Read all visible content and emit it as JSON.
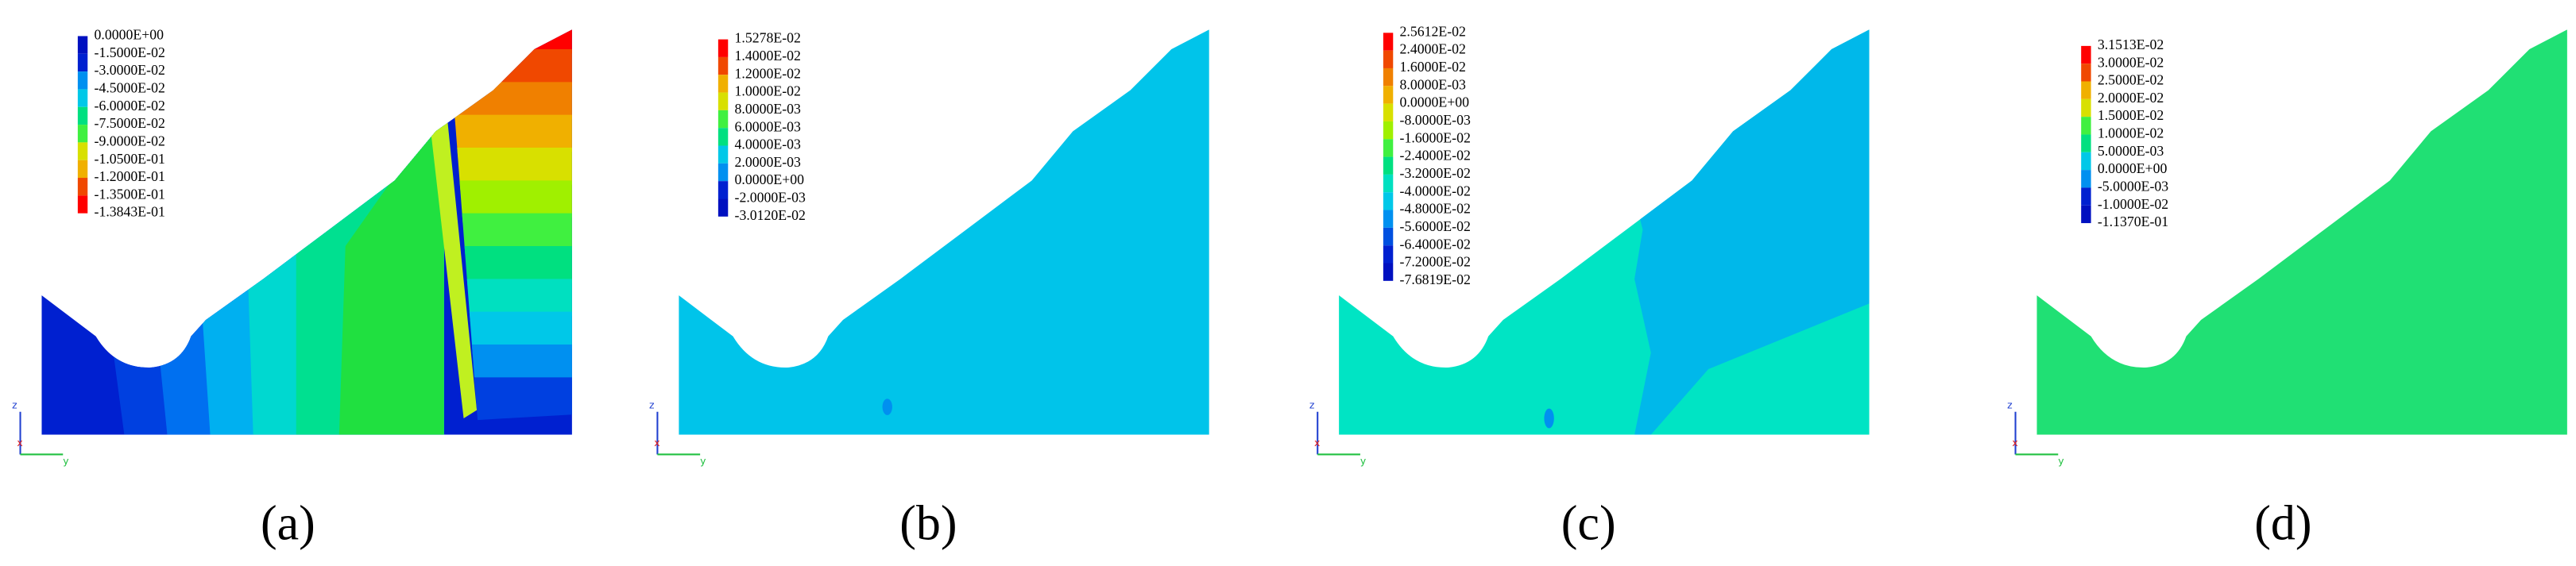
{
  "panels": [
    {
      "label": "(a)",
      "legend": [
        "0.0000E+00",
        "-1.5000E-02",
        "-3.0000E-02",
        "-4.5000E-02",
        "-6.0000E-02",
        "-7.5000E-02",
        "-9.0000E-02",
        "-1.0500E-01",
        "-1.2000E-01",
        "-1.3500E-01",
        "-1.3843E-01"
      ]
    },
    {
      "label": "(b)",
      "legend": [
        "1.5278E-02",
        "1.4000E-02",
        "1.2000E-02",
        "1.0000E-02",
        "8.0000E-03",
        "6.0000E-03",
        "4.0000E-03",
        "2.0000E-03",
        "0.0000E+00",
        "-2.0000E-03",
        "-3.0120E-02"
      ]
    },
    {
      "label": "(c)",
      "legend": [
        "2.5612E-02",
        "2.4000E-02",
        "1.6000E-02",
        "8.0000E-03",
        "0.0000E+00",
        "-8.0000E-03",
        "-1.6000E-02",
        "-2.4000E-02",
        "-3.2000E-02",
        "-4.0000E-02",
        "-4.8000E-02",
        "-5.6000E-02",
        "-6.4000E-02",
        "-7.2000E-02",
        "-7.6819E-02"
      ]
    },
    {
      "label": "(d)",
      "legend": [
        "3.1513E-02",
        "3.0000E-02",
        "2.5000E-02",
        "2.0000E-02",
        "1.5000E-02",
        "1.0000E-02",
        "5.0000E-03",
        "0.0000E+00",
        "-5.0000E-03",
        "-1.0000E-02",
        "-1.1370E-01"
      ]
    }
  ],
  "axis_labels": {
    "z": "z",
    "x": "x",
    "y": "y"
  }
}
